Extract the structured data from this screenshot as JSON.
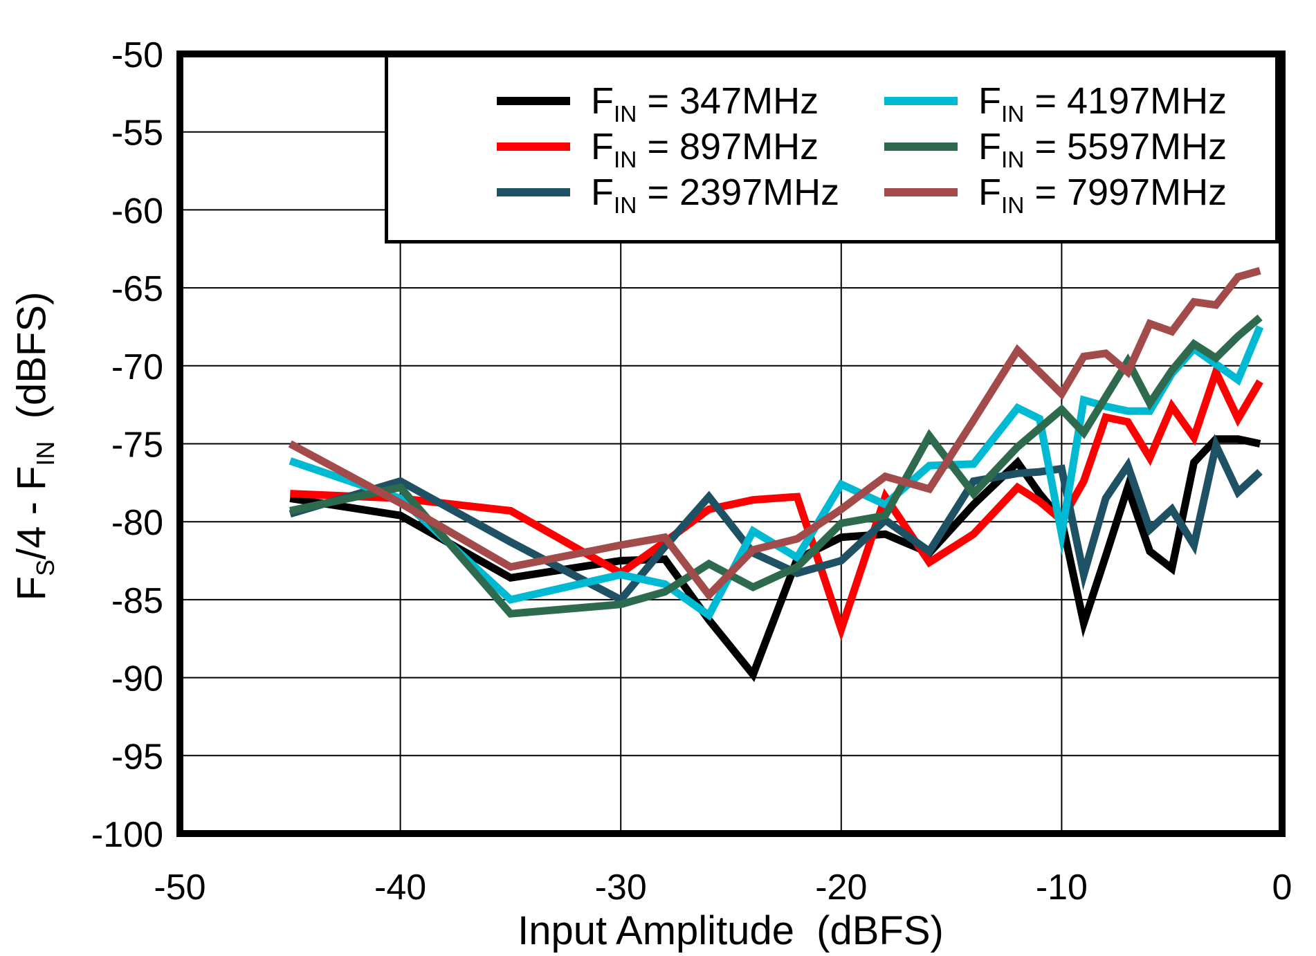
{
  "chart_data": {
    "type": "line",
    "title": "",
    "xlabel": "Input Amplitude  (dBFS)",
    "ylabel": "FS/4 - FIN  (dBFS)",
    "ylabel_parts": {
      "p1": "F",
      "s1": "S",
      "p2": "/4 - F",
      "s2": "IN",
      "p3": "  (dBFS)"
    },
    "xlim": [
      -50,
      0
    ],
    "ylim": [
      -100,
      -50
    ],
    "x_ticks": [
      -50,
      -40,
      -30,
      -20,
      -10,
      0
    ],
    "y_ticks": [
      -50,
      -55,
      -60,
      -65,
      -70,
      -75,
      -80,
      -85,
      -90,
      -95,
      -100
    ],
    "grid": true,
    "legend_position": "top-right-inside",
    "x": [
      -45,
      -40,
      -35,
      -30,
      -28,
      -26,
      -24,
      -22,
      -20,
      -18,
      -16,
      -14,
      -12,
      -11,
      -10,
      -9,
      -8,
      -7,
      -6,
      -5,
      -4,
      -3,
      -2,
      -1
    ],
    "series": [
      {
        "name": "FIN = 347MHz",
        "label_prefix": "F",
        "label_sub": "IN",
        "label_suffix": " = 347MHz",
        "color": "#000000",
        "values": [
          -78.5,
          -79.6,
          -83.6,
          -82.5,
          -82.4,
          -86.3,
          -89.8,
          -82.4,
          -81.0,
          -80.8,
          -82.0,
          -78.9,
          -76.2,
          -78.2,
          -79.9,
          -86.5,
          -82.2,
          -77.8,
          -81.9,
          -83.0,
          -76.2,
          -74.7,
          -74.7,
          -75.0
        ]
      },
      {
        "name": "FIN = 897MHz",
        "label_prefix": "F",
        "label_sub": "IN",
        "label_suffix": " = 897MHz",
        "color": "#ff0000",
        "values": [
          -78.2,
          -78.5,
          -79.3,
          -83.3,
          -81.3,
          -79.2,
          -78.6,
          -78.4,
          -86.9,
          -78.4,
          -82.6,
          -80.8,
          -77.8,
          -78.7,
          -79.9,
          -77.4,
          -73.3,
          -73.6,
          -75.9,
          -72.6,
          -74.6,
          -70.4,
          -73.4,
          -71.0
        ]
      },
      {
        "name": "FIN = 2397MHz",
        "label_prefix": "F",
        "label_sub": "IN",
        "label_suffix": " = 2397MHz",
        "color": "#1e5163",
        "values": [
          -79.5,
          -77.4,
          -81.3,
          -85.0,
          -81.6,
          -78.4,
          -82.0,
          -83.3,
          -82.5,
          -79.9,
          -81.9,
          -77.4,
          -76.9,
          -76.8,
          -76.6,
          -83.4,
          -78.5,
          -76.4,
          -80.5,
          -79.2,
          -81.5,
          -75.1,
          -78.1,
          -76.8
        ]
      },
      {
        "name": "FIN = 4197MHz",
        "label_prefix": "F",
        "label_sub": "IN",
        "label_suffix": " = 4197MHz",
        "color": "#00b9d3",
        "values": [
          -76.1,
          -78.5,
          -85.0,
          -83.4,
          -84.0,
          -86.0,
          -80.6,
          -82.3,
          -77.6,
          -78.9,
          -76.4,
          -76.3,
          -72.7,
          -73.4,
          -80.8,
          -72.2,
          -72.6,
          -72.9,
          -72.9,
          -70.5,
          -68.9,
          -69.9,
          -70.9,
          -67.5
        ]
      },
      {
        "name": "FIN = 5597MHz",
        "label_prefix": "F",
        "label_sub": "IN",
        "label_suffix": " = 5597MHz",
        "color": "#2e6b4e",
        "values": [
          -79.3,
          -77.8,
          -85.9,
          -85.3,
          -84.5,
          -82.7,
          -84.2,
          -82.9,
          -80.1,
          -79.6,
          -74.5,
          -78.2,
          -75.2,
          -74.0,
          -72.8,
          -74.3,
          -72.0,
          -69.7,
          -72.4,
          -70.3,
          -68.6,
          -69.5,
          -68.1,
          -66.9
        ]
      },
      {
        "name": "FIN = 7997MHz",
        "label_prefix": "F",
        "label_sub": "IN",
        "label_suffix": " = 7997MHz",
        "color": "#a34a4a",
        "values": [
          -75.0,
          -78.8,
          -82.9,
          -81.5,
          -81.0,
          -84.7,
          -81.8,
          -81.1,
          -79.2,
          -77.1,
          -77.9,
          -73.5,
          -69.0,
          -70.4,
          -71.8,
          -69.4,
          -69.2,
          -70.4,
          -67.3,
          -67.8,
          -65.9,
          -66.1,
          -64.3,
          -63.9
        ]
      }
    ]
  }
}
